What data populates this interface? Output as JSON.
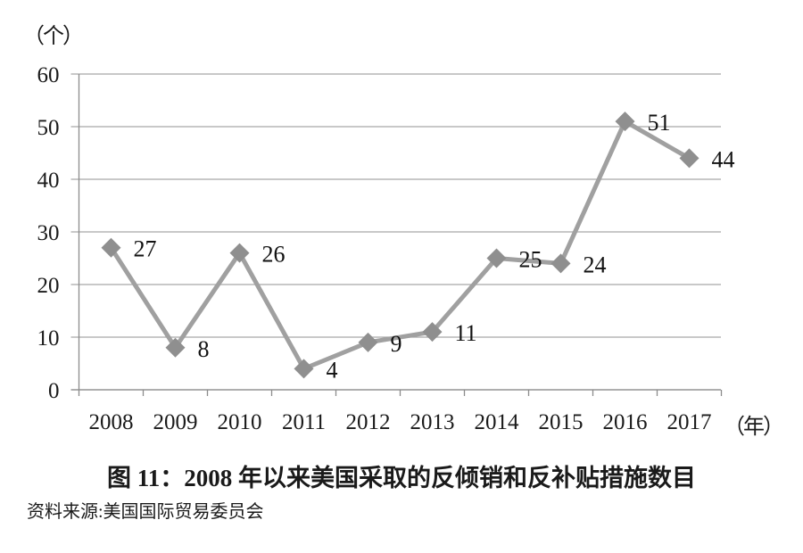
{
  "chart_data": {
    "type": "line",
    "title": "图 11：2008 年以来美国采取的反倾销和反补贴措施数目",
    "source": "资料来源:美国国际贸易委员会",
    "y_unit_label": "（个）",
    "x_unit_label": "（年）",
    "categories": [
      "2008",
      "2009",
      "2010",
      "2011",
      "2012",
      "2013",
      "2014",
      "2015",
      "2016",
      "2017"
    ],
    "values": [
      27,
      8,
      26,
      4,
      9,
      11,
      25,
      24,
      51,
      44
    ],
    "y_ticks": [
      0,
      10,
      20,
      30,
      40,
      50,
      60
    ],
    "ylim": [
      0,
      60
    ],
    "grid": true,
    "legend_position": "none",
    "marker_shape": "diamond",
    "colors": {
      "line": "#a0a0a0",
      "marker": "#8f8f8f",
      "grid": "#a6a6a6",
      "axis": "#8c8c8c",
      "text": "#1a1a1a",
      "label": "#111111"
    }
  }
}
